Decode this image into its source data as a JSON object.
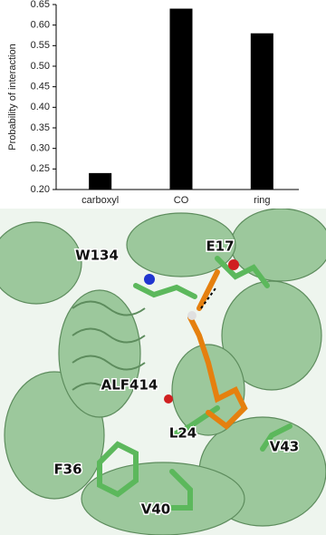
{
  "chart_data": {
    "type": "bar",
    "ylabel": "Probability of interaction",
    "categories": [
      "carboxyl",
      "CO",
      "ring"
    ],
    "values": [
      0.24,
      0.64,
      0.58
    ],
    "color": "#000000",
    "ylim": [
      0.2,
      0.65
    ],
    "yticks": [
      {
        "value": 0.2,
        "label": "0.20"
      },
      0.25,
      {
        "value": 0.3,
        "label": "0.30"
      },
      0.35,
      {
        "value": 0.4,
        "label": "0.40"
      },
      0.45,
      {
        "value": 0.5,
        "label": "0.50"
      },
      0.55,
      {
        "value": 0.6,
        "label": "0.60"
      },
      0.65
    ],
    "grid": false
  },
  "image": {
    "labels": [
      "W134",
      "E17",
      "ALF414",
      "L24",
      "F36",
      "V40",
      "V43"
    ]
  }
}
